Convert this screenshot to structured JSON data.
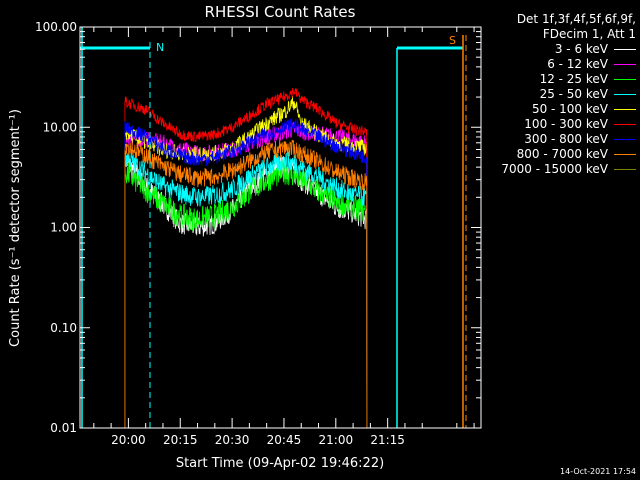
{
  "chart_data": {
    "type": "line",
    "title": "RHESSI Count Rates",
    "xlabel": "Start Time (09-Apr-02 19:46:22)",
    "ylabel": "Count Rate (s⁻¹ detector segment⁻¹)",
    "yscale": "log",
    "ylim": [
      0.01,
      100
    ],
    "ytick_labels": [
      "100.00",
      "10.00",
      "1.00",
      "0.10",
      "0.01"
    ],
    "ytick_values": [
      100,
      10,
      1,
      0.1,
      0.01
    ],
    "xlim_minutes": [
      -14,
      102
    ],
    "xtick_labels": [
      "20:00",
      "20:15",
      "20:30",
      "20:45",
      "21:00",
      "21:15"
    ],
    "xtick_minutes": [
      0,
      15,
      30,
      45,
      60,
      75
    ],
    "x": [
      "19:59",
      "20:05",
      "20:10",
      "20:15",
      "20:20",
      "20:25",
      "20:30",
      "20:35",
      "20:40",
      "20:45",
      "20:48",
      "20:50",
      "20:55",
      "21:00",
      "21:05",
      "21:09"
    ],
    "x_minutes": [
      -1,
      5,
      10,
      15,
      20,
      25,
      30,
      35,
      40,
      45,
      48,
      50,
      55,
      60,
      65,
      69
    ],
    "series": [
      {
        "name": "3 - 6 keV",
        "color": "#ffffff",
        "values": [
          4.8,
          2.6,
          1.7,
          1.1,
          1.0,
          1.1,
          1.5,
          2.4,
          3.4,
          4.1,
          3.5,
          3.0,
          2.2,
          1.6,
          1.4,
          1.2
        ]
      },
      {
        "name": "6 - 12 keV",
        "color": "#ff00ff",
        "values": [
          8.0,
          7.5,
          7.0,
          6.0,
          5.5,
          5.6,
          6.0,
          7.0,
          8.0,
          9.0,
          9.5,
          9.0,
          8.6,
          8.1,
          7.5,
          7.0
        ]
      },
      {
        "name": "12 - 25 keV",
        "color": "#00ff00",
        "values": [
          3.6,
          2.4,
          1.7,
          1.3,
          1.2,
          1.3,
          1.6,
          2.3,
          3.0,
          3.6,
          3.3,
          3.0,
          2.3,
          1.8,
          1.6,
          1.4
        ]
      },
      {
        "name": "25 - 50 keV",
        "color": "#00ffff",
        "values": [
          5.2,
          3.5,
          2.6,
          2.2,
          2.0,
          2.1,
          2.4,
          3.2,
          4.0,
          4.6,
          4.4,
          4.0,
          3.2,
          2.5,
          2.1,
          2.0
        ]
      },
      {
        "name": "50 - 100 keV",
        "color": "#ffff00",
        "values": [
          9.0,
          7.0,
          6.0,
          5.5,
          5.3,
          5.5,
          6.2,
          8.0,
          11.0,
          14.0,
          18.0,
          11.0,
          8.5,
          7.0,
          6.5,
          6.2
        ]
      },
      {
        "name": "100 - 300 keV",
        "color": "#ff0000",
        "values": [
          18.0,
          15.0,
          11.0,
          8.5,
          8.0,
          8.5,
          10.0,
          13.0,
          17.0,
          20.0,
          23.0,
          19.0,
          15.0,
          11.0,
          9.5,
          9.0
        ]
      },
      {
        "name": "300 - 800 keV",
        "color": "#0000ff",
        "values": [
          10.0,
          8.0,
          6.2,
          5.2,
          4.8,
          5.0,
          5.8,
          7.0,
          8.6,
          10.0,
          10.5,
          9.5,
          8.0,
          6.5,
          5.6,
          5.0
        ]
      },
      {
        "name": "800 - 7000 keV",
        "color": "#ff8000",
        "values": [
          6.8,
          5.2,
          4.1,
          3.4,
          3.1,
          3.2,
          3.7,
          4.6,
          5.6,
          6.3,
          6.0,
          5.5,
          4.5,
          3.6,
          3.1,
          2.8
        ]
      },
      {
        "name": "7000 - 15000 keV",
        "color": "#808000",
        "values": [
          null,
          null,
          null,
          null,
          null,
          null,
          null,
          null,
          null,
          null,
          null,
          null,
          null,
          null,
          null,
          null
        ]
      }
    ],
    "markers": [
      {
        "label": "N",
        "color": "#00ffff"
      },
      {
        "label": "S",
        "color": "#ff8000"
      }
    ],
    "legend_placement": "top-right",
    "grid": false
  },
  "legend_header": [
    "Det 1f,3f,4f,5f,6f,9f,",
    "FDecim 1, Att 1"
  ],
  "timestamp": "14-Oct-2021 17:54"
}
